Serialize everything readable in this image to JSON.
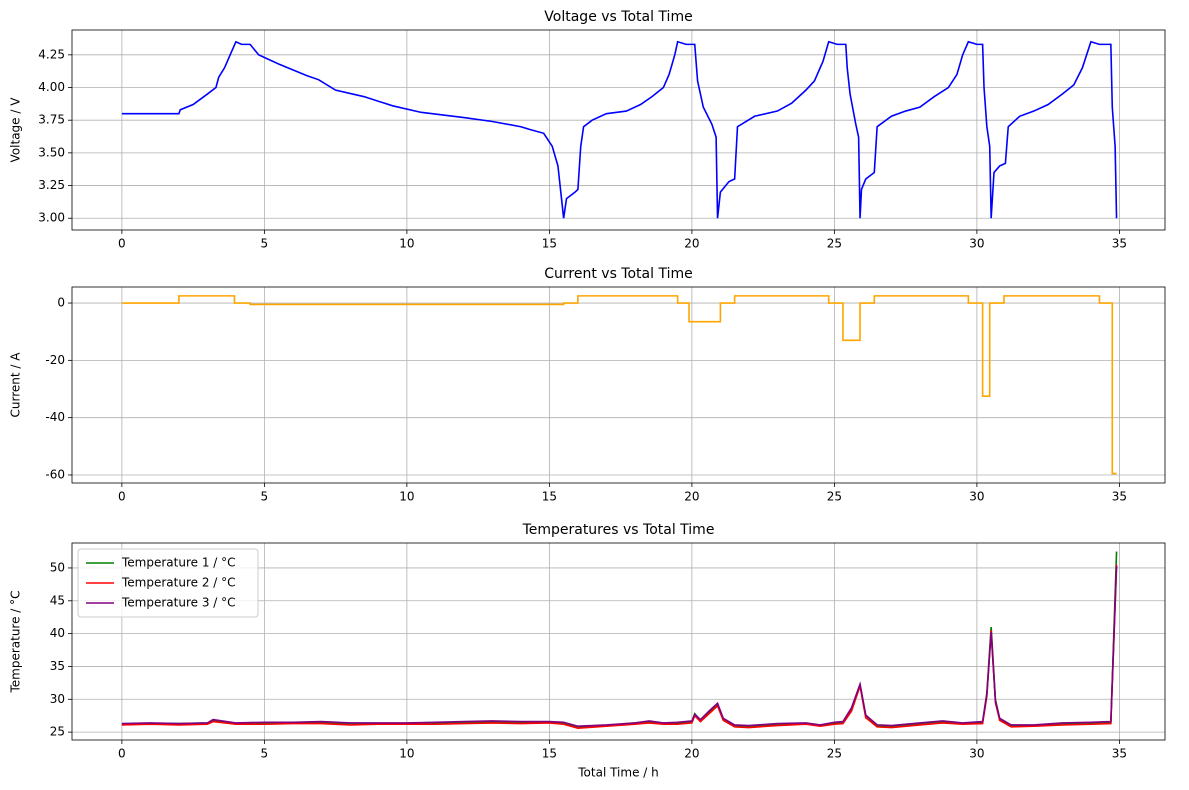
{
  "chart_data": [
    {
      "type": "line",
      "title": "Voltage vs Total Time",
      "ylabel": "Voltage / V",
      "color": "#0000ff",
      "grid": true,
      "xlim": [
        -1.75,
        36.6
      ],
      "ylim": [
        2.91,
        4.44
      ],
      "xticks": [
        0,
        5,
        10,
        15,
        20,
        25,
        30,
        35
      ],
      "yticks": [
        {
          "value": 3,
          "label": "3.00"
        },
        3.25,
        {
          "value": 3.5,
          "label": "3.50"
        },
        3.75,
        {
          "value": 4,
          "label": "4.00"
        },
        4.25
      ],
      "x": [
        0,
        2.0,
        2.05,
        2.5,
        3.0,
        3.3,
        3.4,
        3.6,
        3.8,
        4.0,
        4.2,
        4.5,
        4.8,
        5.5,
        6.5,
        6.9,
        7.5,
        8.5,
        9.5,
        10.5,
        12,
        13,
        14,
        14.3,
        14.8,
        15.1,
        15.3,
        15.5,
        15.6,
        15.9,
        16.0,
        16.1,
        16.2,
        16.5,
        17,
        17.7,
        18.2,
        18.6,
        19.0,
        19.2,
        19.4,
        19.5,
        19.8,
        20.1,
        20.2,
        20.4,
        20.7,
        20.85,
        20.9,
        21.0,
        21.3,
        21.5,
        21.6,
        22.2,
        23,
        23.5,
        24.0,
        24.3,
        24.6,
        24.8,
        25.1,
        25.4,
        25.45,
        25.55,
        25.75,
        25.85,
        25.9,
        25.95,
        26.1,
        26.4,
        26.5,
        27,
        27.5,
        28.0,
        28.5,
        29.0,
        29.3,
        29.5,
        29.7,
        30.0,
        30.2,
        30.25,
        30.35,
        30.45,
        30.5,
        30.6,
        30.8,
        31.0,
        31.1,
        31.5,
        32,
        32.5,
        33.0,
        33.4,
        33.7,
        34.0,
        34.3,
        34.7,
        34.75,
        34.85,
        34.9
      ],
      "values": [
        3.8,
        3.8,
        3.83,
        3.87,
        3.95,
        4.0,
        4.08,
        4.15,
        4.25,
        4.35,
        4.33,
        4.33,
        4.25,
        4.18,
        4.09,
        4.06,
        3.98,
        3.93,
        3.86,
        3.81,
        3.77,
        3.74,
        3.7,
        3.68,
        3.65,
        3.55,
        3.4,
        3.0,
        3.15,
        3.2,
        3.22,
        3.55,
        3.7,
        3.75,
        3.8,
        3.82,
        3.87,
        3.93,
        4.0,
        4.1,
        4.25,
        4.35,
        4.33,
        4.33,
        4.05,
        3.85,
        3.72,
        3.62,
        3.0,
        3.2,
        3.28,
        3.3,
        3.7,
        3.78,
        3.82,
        3.88,
        3.98,
        4.05,
        4.2,
        4.35,
        4.33,
        4.33,
        4.15,
        3.95,
        3.72,
        3.62,
        3.0,
        3.22,
        3.3,
        3.35,
        3.7,
        3.78,
        3.82,
        3.85,
        3.93,
        4.0,
        4.1,
        4.25,
        4.35,
        4.33,
        4.33,
        4.0,
        3.7,
        3.55,
        3.0,
        3.35,
        3.4,
        3.42,
        3.7,
        3.78,
        3.82,
        3.87,
        3.95,
        4.02,
        4.15,
        4.35,
        4.33,
        4.33,
        3.85,
        3.55,
        3.0
      ]
    },
    {
      "type": "line",
      "title": "Current vs Total Time",
      "ylabel": "Current / A",
      "color": "#ffa500",
      "grid": true,
      "xlim": [
        -1.75,
        36.6
      ],
      "ylim": [
        -62.8,
        5.6
      ],
      "xticks": [
        0,
        5,
        10,
        15,
        20,
        25,
        30,
        35
      ],
      "yticks": [
        -60,
        -40,
        -20,
        0
      ],
      "x": [
        0,
        2.0,
        2.0,
        3.95,
        3.95,
        4.5,
        4.5,
        15.5,
        15.5,
        16.0,
        16.0,
        19.5,
        19.5,
        19.9,
        19.9,
        21.0,
        21.0,
        21.5,
        21.5,
        24.8,
        24.8,
        25.3,
        25.3,
        25.9,
        25.9,
        26.4,
        26.4,
        29.7,
        29.7,
        30.2,
        30.2,
        30.45,
        30.45,
        30.95,
        30.95,
        34.3,
        34.3,
        34.75,
        34.75,
        34.9
      ],
      "values": [
        0,
        0,
        2.5,
        2.5,
        0,
        0,
        -0.5,
        -0.5,
        0,
        0,
        2.5,
        2.5,
        0,
        0,
        -6.5,
        -6.5,
        0,
        0,
        2.5,
        2.5,
        0,
        0,
        -13,
        -13,
        0,
        0,
        2.5,
        2.5,
        0,
        0,
        -32.5,
        -32.5,
        0,
        0,
        2.5,
        2.5,
        0,
        0,
        -59.5,
        -59.5
      ]
    },
    {
      "type": "line",
      "title": "Temperatures vs Total Time",
      "xlabel": "Total Time / h",
      "ylabel": "Temperature / °C",
      "grid": true,
      "legend": "upper left",
      "xlim": [
        -1.75,
        36.6
      ],
      "ylim": [
        23.8,
        53.8
      ],
      "xticks": [
        0,
        5,
        10,
        15,
        20,
        25,
        30,
        35
      ],
      "yticks": [
        25,
        30,
        35,
        40,
        45,
        50
      ],
      "x": [
        0,
        1,
        2,
        3,
        3.2,
        4,
        5,
        6,
        7,
        8,
        9,
        10,
        11,
        12,
        13,
        14,
        15,
        15.5,
        16,
        17,
        18,
        18.5,
        19,
        19.5,
        20,
        20.1,
        20.3,
        20.6,
        20.9,
        21.1,
        21.5,
        22,
        23,
        24,
        24.5,
        25,
        25.3,
        25.6,
        25.9,
        26.1,
        26.5,
        27,
        28,
        28.8,
        29.5,
        30.2,
        30.35,
        30.5,
        30.65,
        30.8,
        31.2,
        32,
        33,
        34,
        34.7,
        34.9
      ],
      "series": [
        {
          "name": "Temperature 1 / °C",
          "color": "#008000",
          "values": [
            26.2,
            26.3,
            26.3,
            26.4,
            26.8,
            26.3,
            26.4,
            26.4,
            26.5,
            26.3,
            26.3,
            26.3,
            26.4,
            26.5,
            26.6,
            26.5,
            26.5,
            26.4,
            25.8,
            26.0,
            26.4,
            26.6,
            26.3,
            26.4,
            26.6,
            27.8,
            26.8,
            28.0,
            29.3,
            27.0,
            26.0,
            25.9,
            26.2,
            26.3,
            26.0,
            26.4,
            26.5,
            28.5,
            32.2,
            27.5,
            26.0,
            25.9,
            26.3,
            26.6,
            26.3,
            26.5,
            31.0,
            41.0,
            30.0,
            27.0,
            26.0,
            26.0,
            26.3,
            26.4,
            26.5,
            52.5
          ]
        },
        {
          "name": "Temperature 2 / °C",
          "color": "#ff0000",
          "values": [
            26.1,
            26.2,
            26.1,
            26.2,
            26.6,
            26.2,
            26.2,
            26.3,
            26.3,
            26.1,
            26.2,
            26.2,
            26.2,
            26.3,
            26.4,
            26.3,
            26.4,
            26.2,
            25.6,
            25.9,
            26.2,
            26.4,
            26.2,
            26.2,
            26.4,
            27.5,
            26.6,
            27.8,
            29.0,
            26.8,
            25.8,
            25.7,
            26.0,
            26.2,
            25.9,
            26.2,
            26.3,
            28.2,
            32.0,
            27.2,
            25.8,
            25.7,
            26.1,
            26.4,
            26.2,
            26.3,
            30.5,
            40.5,
            29.5,
            26.8,
            25.8,
            25.9,
            26.1,
            26.2,
            26.3,
            50.5
          ]
        },
        {
          "name": "Temperature 3 / °C",
          "color": "#800080",
          "values": [
            26.3,
            26.4,
            26.3,
            26.4,
            26.9,
            26.4,
            26.5,
            26.5,
            26.6,
            26.4,
            26.4,
            26.4,
            26.5,
            26.6,
            26.7,
            26.6,
            26.6,
            26.5,
            25.9,
            26.1,
            26.4,
            26.7,
            26.4,
            26.5,
            26.7,
            27.7,
            26.9,
            28.2,
            29.4,
            27.1,
            26.1,
            26.0,
            26.3,
            26.4,
            26.1,
            26.5,
            26.6,
            28.7,
            32.3,
            27.6,
            26.1,
            26.0,
            26.4,
            26.7,
            26.4,
            26.6,
            30.8,
            40.2,
            29.8,
            27.1,
            26.1,
            26.1,
            26.4,
            26.5,
            26.6,
            50.3
          ]
        }
      ]
    }
  ]
}
